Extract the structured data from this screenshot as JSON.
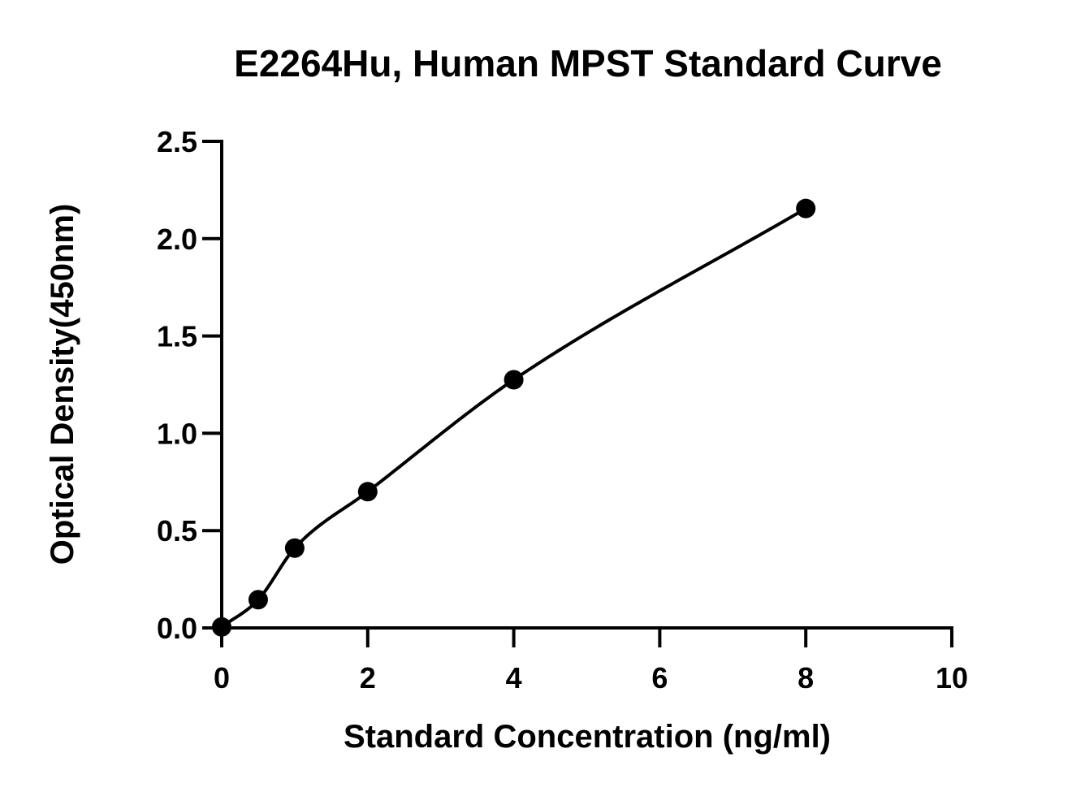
{
  "chart_data": {
    "type": "scatter",
    "title": "E2264Hu, Human MPST Standard Curve",
    "xlabel": "Standard Concentration (ng/ml)",
    "ylabel": "Optical Density(450nm)",
    "xlim": [
      0,
      10
    ],
    "ylim": [
      0,
      2.5
    ],
    "xticks": [
      "0",
      "2",
      "4",
      "6",
      "8",
      "10"
    ],
    "yticks": [
      "0.0",
      "0.5",
      "1.0",
      "1.5",
      "2.0",
      "2.5"
    ],
    "grid": false,
    "points": {
      "x": [
        0,
        0.5,
        1,
        2,
        4,
        8
      ],
      "y": [
        0.005,
        0.145,
        0.41,
        0.7,
        1.275,
        2.155
      ]
    },
    "fit_curve": true,
    "color": "#000000"
  }
}
